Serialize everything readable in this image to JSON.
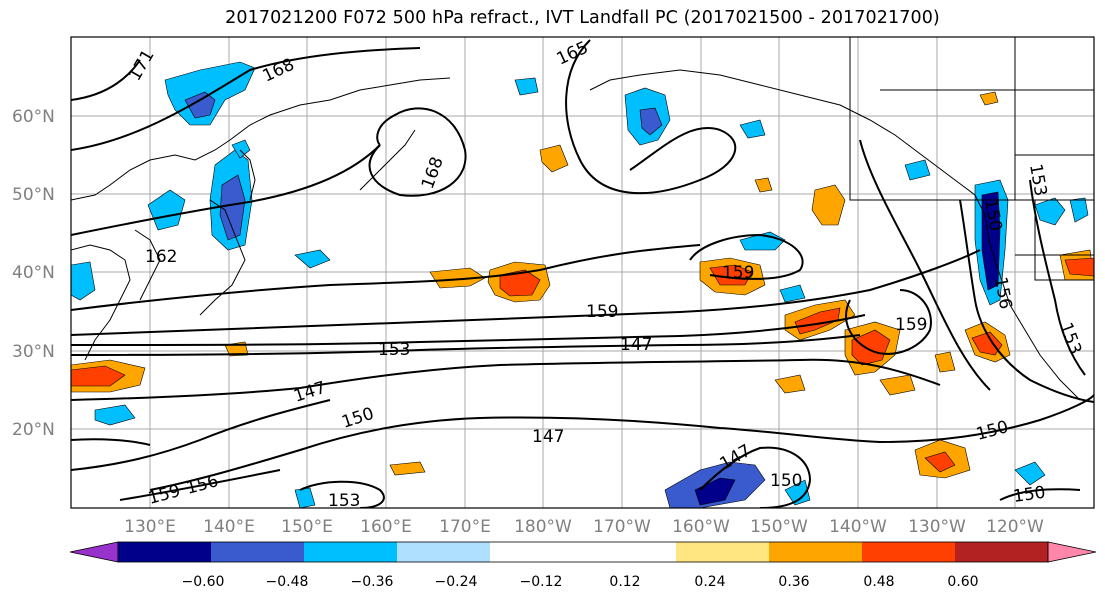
{
  "title": "2017021200 F072 500 hPa refract., IVT Landfall PC (2017021500 - 2017021700)",
  "lat_labels": [
    "60°N",
    "50°N",
    "40°N",
    "30°N",
    "20°N"
  ],
  "lon_labels": [
    "130°E",
    "140°E",
    "150°E",
    "160°E",
    "170°E",
    "180°W",
    "170°W",
    "160°W",
    "150°W",
    "140°W",
    "130°W",
    "120°W"
  ],
  "colorbar": {
    "colors": [
      "#9932cc",
      "#00008b",
      "#3a5bcd",
      "#00bfff",
      "#b0e0ff",
      "#ffffff",
      "#ffffff",
      "#ffe680",
      "#ffa500",
      "#ff4000",
      "#b22222",
      "#ff88aa"
    ],
    "tick_labels": [
      "−0.60",
      "−0.48",
      "−0.36",
      "−0.24",
      "−0.12",
      "0.12",
      "0.24",
      "0.36",
      "0.48",
      "0.60"
    ]
  },
  "contour_labels": [
    "171",
    "168",
    "165",
    "168",
    "162",
    "159",
    "159",
    "159",
    "153",
    "147",
    "147",
    "150",
    "147",
    "150",
    "147",
    "150",
    "150",
    "153",
    "159",
    "156",
    "153",
    "150",
    "153",
    "156"
  ]
}
